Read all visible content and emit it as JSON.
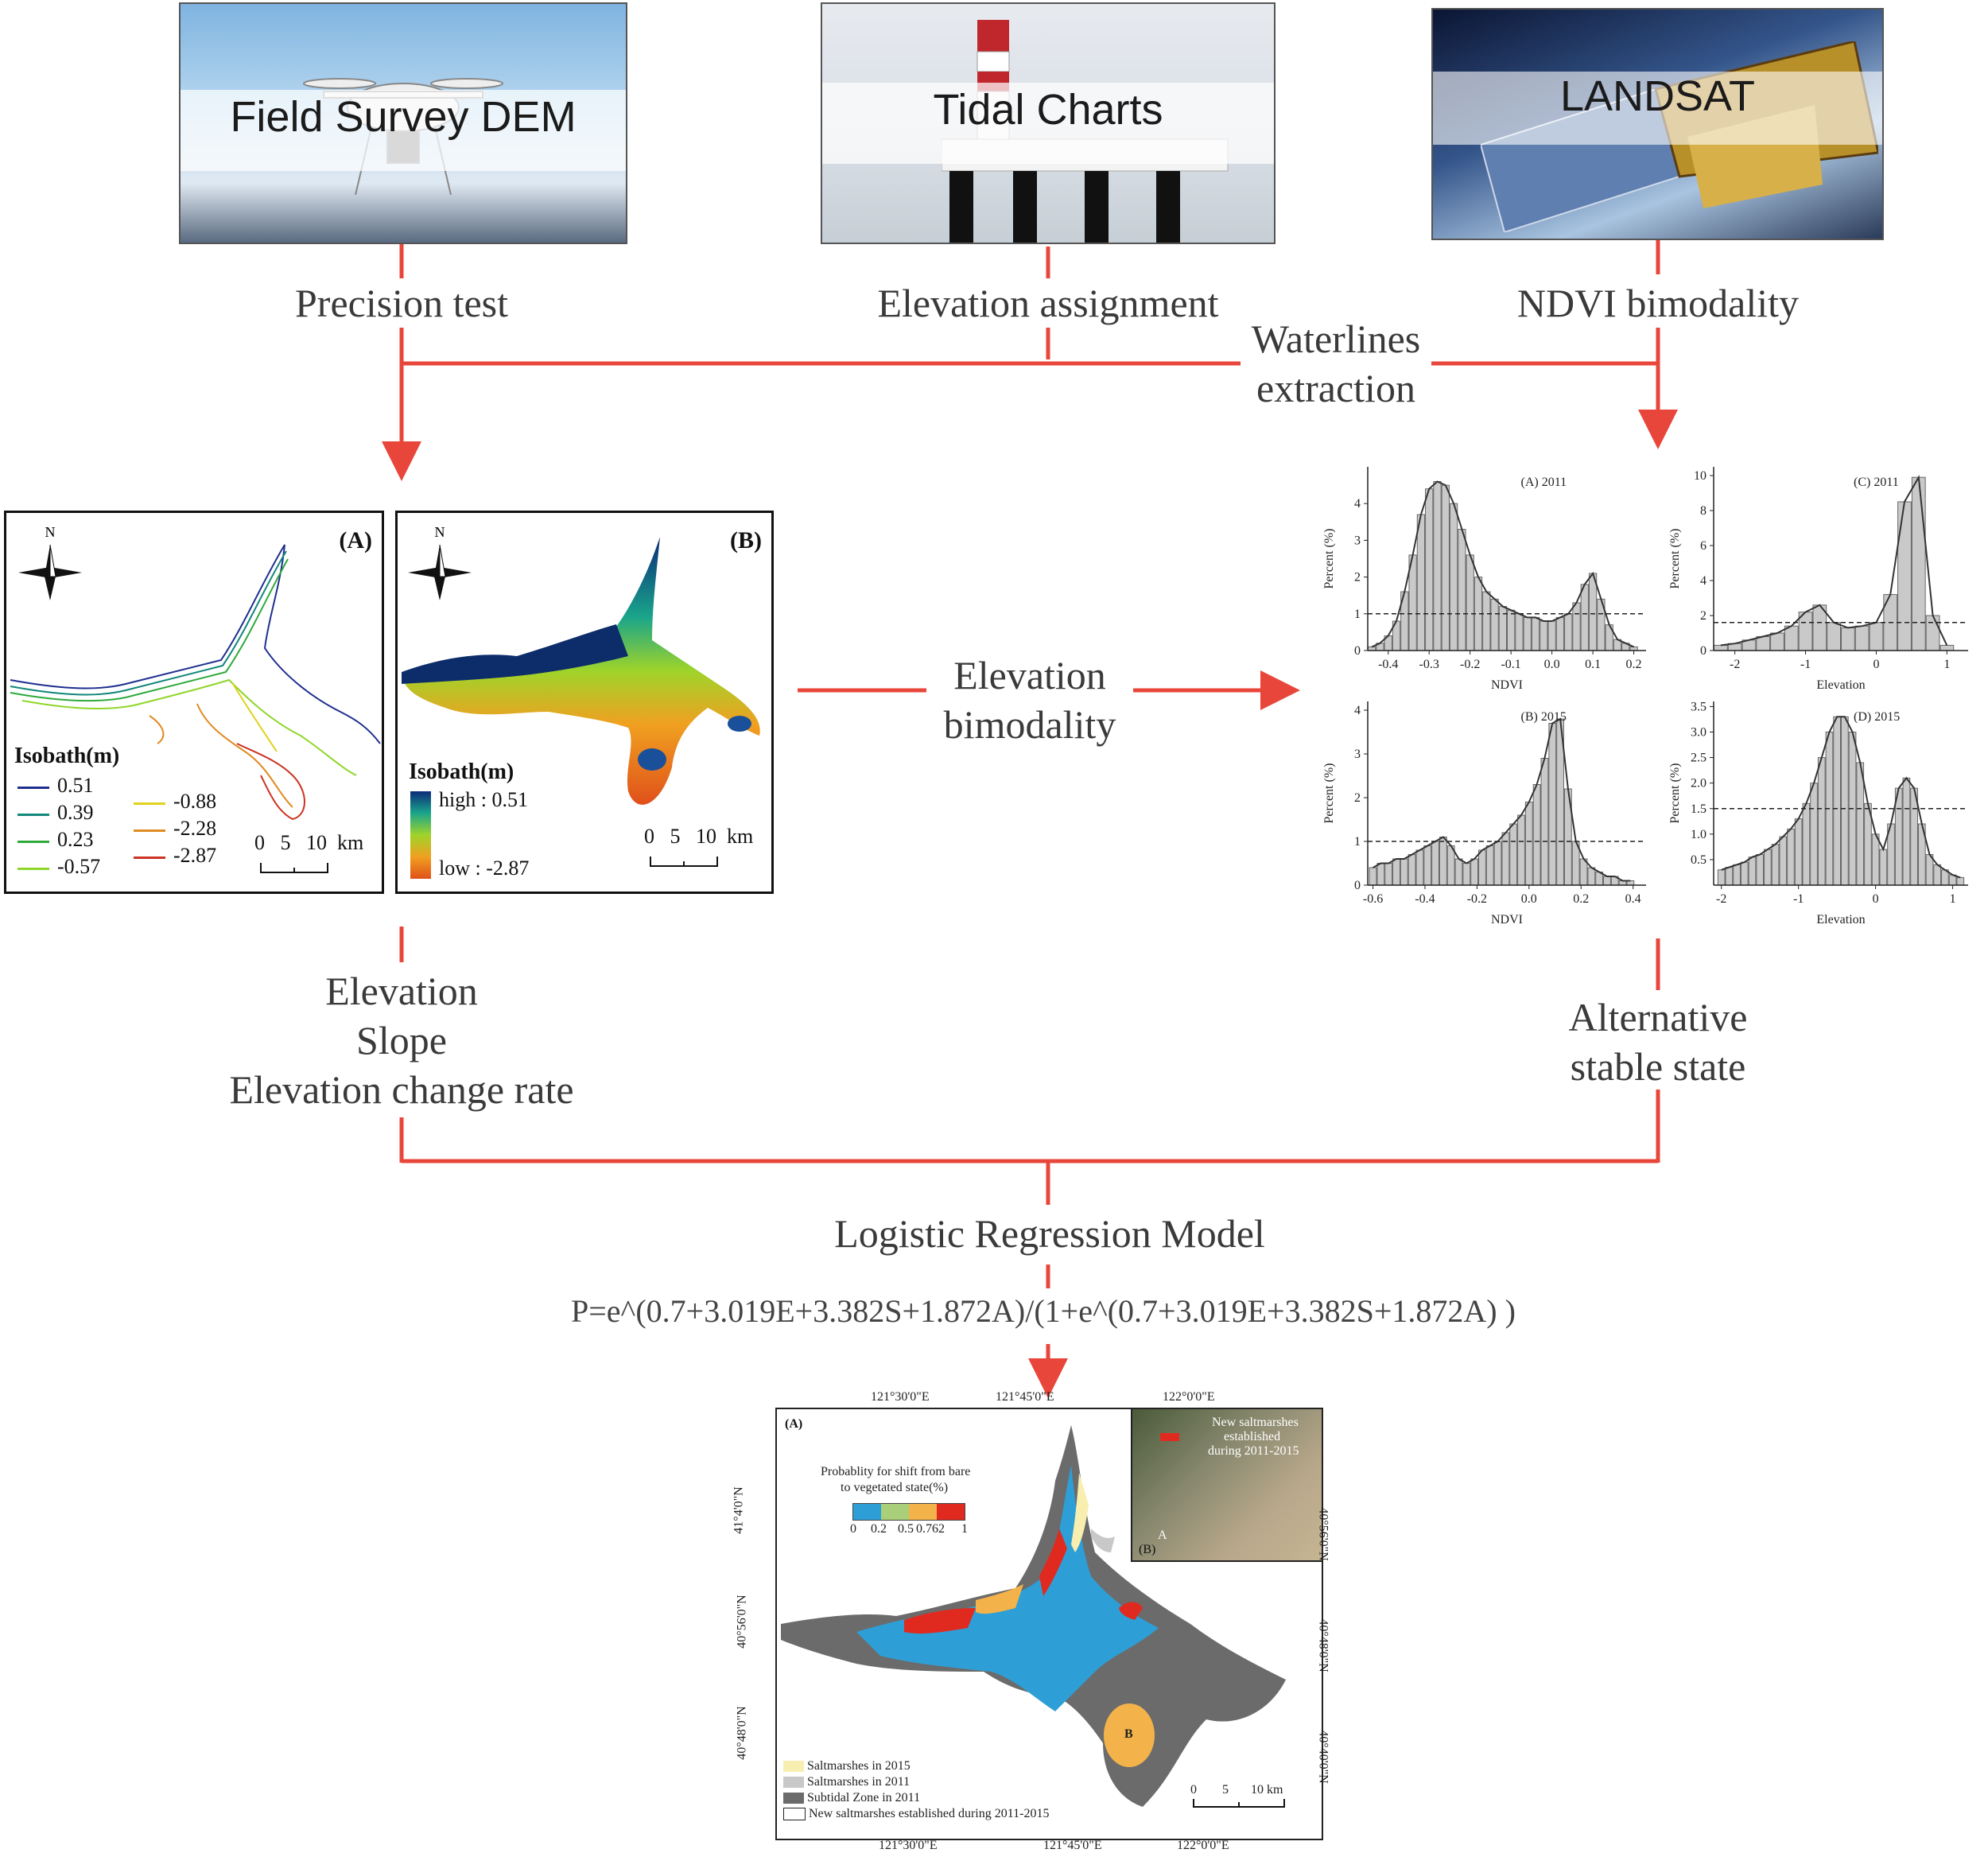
{
  "photos": {
    "field_survey": "Field Survey DEM",
    "tidal": "Tidal Charts",
    "landsat": "LANDSAT"
  },
  "steps": {
    "precision": "Precision test",
    "elevation_assign": "Elevation assignment",
    "ndvi_bimodality": "NDVI bimodality",
    "waterlines_1": "Waterlines",
    "waterlines_2": "extraction",
    "elev_bimodality_1": "Elevation",
    "elev_bimodality_2": "bimodality",
    "factors_1": "Elevation",
    "factors_2": "Slope",
    "factors_3": "Elevation change rate",
    "alt_1": "Alternative",
    "alt_2": "stable state",
    "model": "Logistic Regression Model",
    "equation": "P=e^(0.7+3.019E+3.382S+1.872A)/(1+e^(0.7+3.019E+3.382S+1.872A) )"
  },
  "map_a": {
    "letter": "(A)",
    "north": "N",
    "legend_title": "Isobath(m)",
    "isobaths": [
      {
        "label": "0.51",
        "color": "#1f2f8f"
      },
      {
        "label": "0.39",
        "color": "#12877a"
      },
      {
        "label": "0.23",
        "color": "#2eaa3c"
      },
      {
        "label": "-0.57",
        "color": "#8fd62a"
      },
      {
        "label": "-0.88",
        "color": "#e0d21e"
      },
      {
        "label": "-2.28",
        "color": "#e08a22"
      },
      {
        "label": "-2.87",
        "color": "#cc3322"
      }
    ],
    "scale": "0   5   10  km"
  },
  "map_b": {
    "letter": "(B)",
    "north": "N",
    "legend_title": "Isobath(m)",
    "high": "high : 0.51",
    "low": "low : -2.87",
    "scale": "0   5   10  km"
  },
  "chart_data": [
    {
      "type": "bar",
      "title": "(A) 2011",
      "xlabel": "NDVI",
      "ylabel": "Percent (%)",
      "xlim": [
        -0.45,
        0.23
      ],
      "ylim": [
        0,
        5
      ],
      "xticks": [
        "-0.4",
        "-0.3",
        "-0.2",
        "-0.1",
        "0.0",
        "0.1",
        "0.2"
      ],
      "yticks": [
        "0",
        "1",
        "2",
        "3",
        "4"
      ],
      "threshold": 1,
      "x": [
        -0.44,
        -0.42,
        -0.4,
        -0.38,
        -0.36,
        -0.34,
        -0.32,
        -0.3,
        -0.28,
        -0.26,
        -0.24,
        -0.22,
        -0.2,
        -0.18,
        -0.16,
        -0.14,
        -0.12,
        -0.1,
        -0.08,
        -0.06,
        -0.04,
        -0.02,
        0.0,
        0.02,
        0.04,
        0.06,
        0.08,
        0.1,
        0.12,
        0.14,
        0.16,
        0.18,
        0.2
      ],
      "values": [
        0.1,
        0.2,
        0.4,
        0.8,
        1.6,
        2.6,
        3.7,
        4.4,
        4.6,
        4.5,
        4.0,
        3.3,
        2.6,
        2.0,
        1.6,
        1.4,
        1.2,
        1.1,
        1.0,
        0.9,
        0.9,
        0.8,
        0.8,
        0.9,
        1.0,
        1.3,
        1.8,
        2.1,
        1.4,
        0.7,
        0.3,
        0.2,
        0.1
      ]
    },
    {
      "type": "bar",
      "title": "(C) 2011",
      "xlabel": "Elevation",
      "ylabel": "Percent (%)",
      "xlim": [
        -2.3,
        1.3
      ],
      "ylim": [
        0,
        10.5
      ],
      "xticks": [
        "-2",
        "-1",
        "0",
        "1"
      ],
      "yticks": [
        "0",
        "2",
        "4",
        "6",
        "8",
        "10"
      ],
      "threshold": 1.6,
      "x": [
        -2.2,
        -2.0,
        -1.8,
        -1.6,
        -1.4,
        -1.2,
        -1.0,
        -0.8,
        -0.6,
        -0.4,
        -0.2,
        0.0,
        0.2,
        0.4,
        0.6,
        0.8,
        1.0
      ],
      "values": [
        0.3,
        0.4,
        0.6,
        0.8,
        1.0,
        1.4,
        2.2,
        2.6,
        1.6,
        1.3,
        1.4,
        1.6,
        3.2,
        8.5,
        9.9,
        2.0,
        0.3
      ]
    },
    {
      "type": "bar",
      "title": "(B) 2015",
      "xlabel": "NDVI",
      "ylabel": "Percent (%)",
      "xlim": [
        -0.62,
        0.45
      ],
      "ylim": [
        0,
        4.2
      ],
      "xticks": [
        "-0.6",
        "-0.4",
        "-0.2",
        "0.0",
        "0.2",
        "0.4"
      ],
      "yticks": [
        "0",
        "1",
        "2",
        "3",
        "4"
      ],
      "threshold": 1,
      "x": [
        -0.6,
        -0.57,
        -0.54,
        -0.51,
        -0.48,
        -0.45,
        -0.42,
        -0.39,
        -0.36,
        -0.33,
        -0.3,
        -0.27,
        -0.24,
        -0.21,
        -0.18,
        -0.15,
        -0.12,
        -0.09,
        -0.06,
        -0.03,
        0.0,
        0.03,
        0.06,
        0.09,
        0.12,
        0.15,
        0.18,
        0.21,
        0.24,
        0.27,
        0.3,
        0.33,
        0.36,
        0.39
      ],
      "values": [
        0.4,
        0.5,
        0.5,
        0.6,
        0.6,
        0.7,
        0.8,
        0.9,
        1.0,
        1.1,
        0.9,
        0.6,
        0.5,
        0.6,
        0.8,
        0.9,
        1.0,
        1.2,
        1.4,
        1.6,
        1.9,
        2.3,
        2.9,
        3.7,
        3.8,
        2.2,
        1.0,
        0.6,
        0.4,
        0.3,
        0.2,
        0.2,
        0.1,
        0.1
      ]
    },
    {
      "type": "bar",
      "title": "(D) 2015",
      "xlabel": "Elevation",
      "ylabel": "Percent (%)",
      "xlim": [
        -2.1,
        1.2
      ],
      "ylim": [
        0,
        3.6
      ],
      "xticks": [
        "-2",
        "-1",
        "0",
        "1"
      ],
      "yticks": [
        "0.5",
        "1.0",
        "1.5",
        "2.0",
        "2.5",
        "3.0",
        "3.5"
      ],
      "threshold": 1.5,
      "x": [
        -2.0,
        -1.9,
        -1.8,
        -1.7,
        -1.6,
        -1.5,
        -1.4,
        -1.3,
        -1.2,
        -1.1,
        -1.0,
        -0.9,
        -0.8,
        -0.7,
        -0.6,
        -0.5,
        -0.4,
        -0.3,
        -0.2,
        -0.1,
        0.0,
        0.1,
        0.2,
        0.3,
        0.4,
        0.5,
        0.6,
        0.7,
        0.8,
        0.9,
        1.0,
        1.1
      ],
      "values": [
        0.3,
        0.35,
        0.4,
        0.45,
        0.55,
        0.6,
        0.7,
        0.8,
        0.95,
        1.1,
        1.3,
        1.6,
        2.0,
        2.5,
        3.0,
        3.3,
        3.3,
        3.0,
        2.4,
        1.6,
        1.0,
        0.7,
        1.2,
        1.9,
        2.1,
        1.9,
        1.2,
        0.6,
        0.4,
        0.3,
        0.2,
        0.15
      ]
    }
  ],
  "result_map": {
    "letter_a": "(A)",
    "legend_title_1": "Probablity for shift from bare",
    "legend_title_2": "to vegetated state(%)",
    "ramp_colors": [
      "#2e9fd6",
      "#a9cf7a",
      "#f3b34a",
      "#e02a1f"
    ],
    "ramp_labels": [
      "0",
      "0.2",
      "0.5",
      "0.762",
      "1"
    ],
    "top_lons": [
      "121°30'0\"E",
      "121°45'0\"E",
      "122°0'0\"E"
    ],
    "bottom_lons": [
      "121°30'0\"E",
      "121°45'0\"E",
      "122°0'0\"E"
    ],
    "left_lats": [
      "41°4'0\"N",
      "40°56'0\"N",
      "40°48'0\"N"
    ],
    "right_lats": [
      "40°56'0\"N",
      "40°48'0\"N",
      "40°40'0\"N"
    ],
    "inset_text_1": "New saltmarshes",
    "inset_text_2": "established",
    "inset_text_3": "during 2011-2015",
    "inset_b": "(B)",
    "inset_a": "A",
    "marker_b": "B",
    "scale": "0        5       10 km",
    "legend": [
      {
        "label": "Saltmarshes in 2015",
        "color": "#f7eeb0"
      },
      {
        "label": "Saltmarshes in 2011",
        "color": "#c8c8c8"
      },
      {
        "label": "Subtidal Zone in 2011",
        "color": "#6b6b6b"
      },
      {
        "label": "New saltmarshes established during 2011-2015",
        "color": "#ffffff"
      }
    ]
  },
  "colors": {
    "arrow": "#e8463a"
  }
}
